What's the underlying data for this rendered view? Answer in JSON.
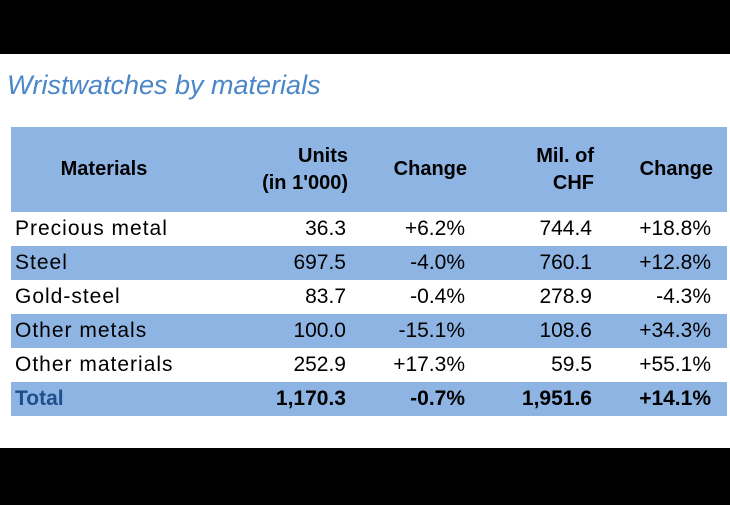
{
  "title": "Wristwatches by materials",
  "table": {
    "headers": [
      "Materials",
      "Units\n(in 1'000)",
      "Change",
      "Mil. of\nCHF",
      "Change"
    ],
    "rows": [
      [
        "Precious metal",
        "36.3",
        "+6.2%",
        "744.4",
        "+18.8%"
      ],
      [
        "Steel",
        "697.5",
        "-4.0%",
        "760.1",
        "+12.8%"
      ],
      [
        "Gold-steel",
        "83.7",
        "-0.4%",
        "278.9",
        "-4.3%"
      ],
      [
        "Other metals",
        "100.0",
        "-15.1%",
        "108.6",
        "+34.3%"
      ],
      [
        "Other materials",
        "252.9",
        "+17.3%",
        "59.5",
        "+55.1%"
      ]
    ],
    "total": [
      "Total",
      "1,170.3",
      "-0.7%",
      "1,951.6",
      "+14.1%"
    ]
  },
  "colors": {
    "header_fill": "#8db4e2",
    "title_color": "#4a86c8",
    "total_label_color": "#1f4e8c"
  }
}
